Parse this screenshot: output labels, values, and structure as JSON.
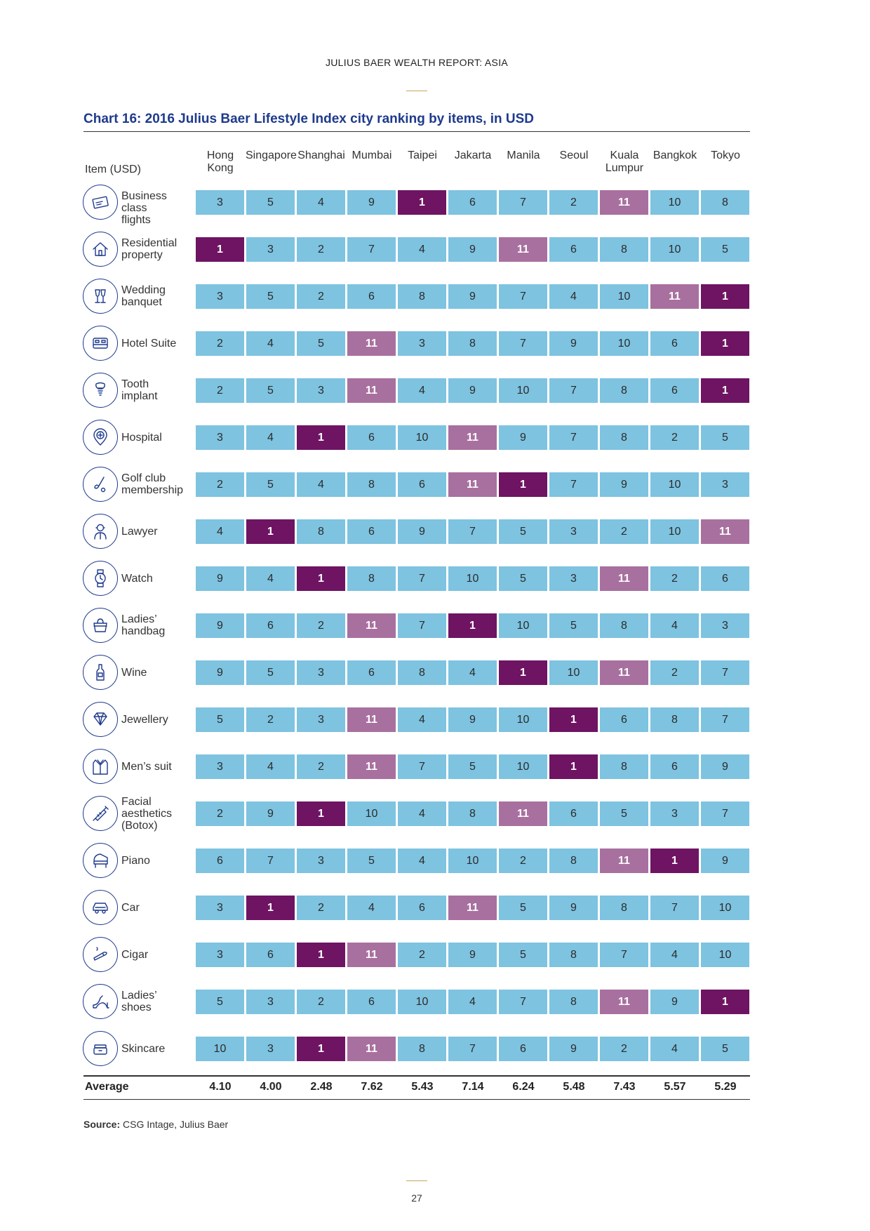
{
  "header": {
    "report_title": "JULIUS BAER WEALTH REPORT: ASIA"
  },
  "chart": {
    "title": "Chart 16: 2016 Julius Baer Lifestyle Index city ranking by items, in USD",
    "item_header": "Item (USD)",
    "average_label": "Average"
  },
  "colors": {
    "mid": "#7ec3e0",
    "most_expensive": "#a8709f",
    "least_expensive": "#6e1462"
  },
  "chart_data": {
    "type": "table",
    "columns": [
      "Hong Kong",
      "Singapore",
      "Shanghai",
      "Mumbai",
      "Taipei",
      "Jakarta",
      "Manila",
      "Seoul",
      "Kuala Lumpur",
      "Bangkok",
      "Tokyo"
    ],
    "column_labels": [
      [
        "Hong",
        "Kong"
      ],
      [
        "Singapore"
      ],
      [
        "Shanghai"
      ],
      [
        "Mumbai"
      ],
      [
        "Taipei"
      ],
      [
        "Jakarta"
      ],
      [
        "Manila"
      ],
      [
        "Seoul"
      ],
      [
        "Kuala",
        "Lumpur"
      ],
      [
        "Bangkok"
      ],
      [
        "Tokyo"
      ]
    ],
    "rows": [
      {
        "item": "Business class flights",
        "label_lines": [
          "Business class",
          "flights"
        ],
        "icon": "airline-ticket-icon",
        "values": [
          3,
          5,
          4,
          9,
          1,
          6,
          7,
          2,
          11,
          10,
          8
        ]
      },
      {
        "item": "Residential property",
        "label_lines": [
          "Residential",
          "property"
        ],
        "icon": "house-icon",
        "values": [
          1,
          3,
          2,
          7,
          4,
          9,
          11,
          6,
          8,
          10,
          5
        ]
      },
      {
        "item": "Wedding banquet",
        "label_lines": [
          "Wedding",
          "banquet"
        ],
        "icon": "champagne-glasses-icon",
        "values": [
          3,
          5,
          2,
          6,
          8,
          9,
          7,
          4,
          10,
          11,
          1
        ]
      },
      {
        "item": "Hotel Suite",
        "label_lines": [
          "Hotel Suite"
        ],
        "icon": "bed-icon",
        "values": [
          2,
          4,
          5,
          11,
          3,
          8,
          7,
          9,
          10,
          6,
          1
        ]
      },
      {
        "item": "Tooth implant",
        "label_lines": [
          "Tooth",
          "implant"
        ],
        "icon": "tooth-implant-icon",
        "values": [
          2,
          5,
          3,
          11,
          4,
          9,
          10,
          7,
          8,
          6,
          1
        ]
      },
      {
        "item": "Hospital",
        "label_lines": [
          "Hospital"
        ],
        "icon": "hospital-pin-icon",
        "values": [
          3,
          4,
          1,
          6,
          10,
          11,
          9,
          7,
          8,
          2,
          5
        ]
      },
      {
        "item": "Golf club membership",
        "label_lines": [
          "Golf club",
          "membership"
        ],
        "icon": "golf-club-icon",
        "values": [
          2,
          5,
          4,
          8,
          6,
          11,
          1,
          7,
          9,
          10,
          3
        ]
      },
      {
        "item": "Lawyer",
        "label_lines": [
          "Lawyer"
        ],
        "icon": "lawyer-icon",
        "values": [
          4,
          1,
          8,
          6,
          9,
          7,
          5,
          3,
          2,
          10,
          11
        ]
      },
      {
        "item": "Watch",
        "label_lines": [
          "Watch"
        ],
        "icon": "watch-icon",
        "values": [
          9,
          4,
          1,
          8,
          7,
          10,
          5,
          3,
          11,
          2,
          6
        ]
      },
      {
        "item": "Ladies' handbag",
        "label_lines": [
          "Ladies’",
          "handbag"
        ],
        "icon": "handbag-icon",
        "values": [
          9,
          6,
          2,
          11,
          7,
          1,
          10,
          5,
          8,
          4,
          3
        ]
      },
      {
        "item": "Wine",
        "label_lines": [
          "Wine"
        ],
        "icon": "wine-bottle-icon",
        "values": [
          9,
          5,
          3,
          6,
          8,
          4,
          1,
          10,
          11,
          2,
          7
        ]
      },
      {
        "item": "Jewellery",
        "label_lines": [
          "Jewellery"
        ],
        "icon": "diamond-icon",
        "values": [
          5,
          2,
          3,
          11,
          4,
          9,
          10,
          1,
          6,
          8,
          7
        ]
      },
      {
        "item": "Men's suit",
        "label_lines": [
          "Men’s suit"
        ],
        "icon": "suit-icon",
        "values": [
          3,
          4,
          2,
          11,
          7,
          5,
          10,
          1,
          8,
          6,
          9
        ]
      },
      {
        "item": "Facial aesthetics (Botox)",
        "label_lines": [
          "Facial",
          "aesthetics",
          "(Botox)"
        ],
        "icon": "syringe-icon",
        "values": [
          2,
          9,
          1,
          10,
          4,
          8,
          11,
          6,
          5,
          3,
          7
        ]
      },
      {
        "item": "Piano",
        "label_lines": [
          "Piano"
        ],
        "icon": "piano-icon",
        "values": [
          6,
          7,
          3,
          5,
          4,
          10,
          2,
          8,
          11,
          1,
          9
        ]
      },
      {
        "item": "Car",
        "label_lines": [
          "Car"
        ],
        "icon": "car-icon",
        "values": [
          3,
          1,
          2,
          4,
          6,
          11,
          5,
          9,
          8,
          7,
          10
        ]
      },
      {
        "item": "Cigar",
        "label_lines": [
          "Cigar"
        ],
        "icon": "cigar-icon",
        "values": [
          3,
          6,
          1,
          11,
          2,
          9,
          5,
          8,
          7,
          4,
          10
        ]
      },
      {
        "item": "Ladies' shoes",
        "label_lines": [
          "Ladies’",
          "shoes"
        ],
        "icon": "high-heel-icon",
        "values": [
          5,
          3,
          2,
          6,
          10,
          4,
          7,
          8,
          11,
          9,
          1
        ]
      },
      {
        "item": "Skincare",
        "label_lines": [
          "Skincare"
        ],
        "icon": "cream-jar-icon",
        "values": [
          10,
          3,
          1,
          11,
          8,
          7,
          6,
          9,
          2,
          4,
          5
        ]
      }
    ],
    "averages": [
      "4.10",
      "4.00",
      "2.48",
      "7.62",
      "5.43",
      "7.14",
      "6.24",
      "5.48",
      "7.43",
      "5.57",
      "5.29"
    ]
  },
  "source": {
    "label": "Source:",
    "text": " CSG Intage, Julius Baer"
  },
  "page_number": "27"
}
